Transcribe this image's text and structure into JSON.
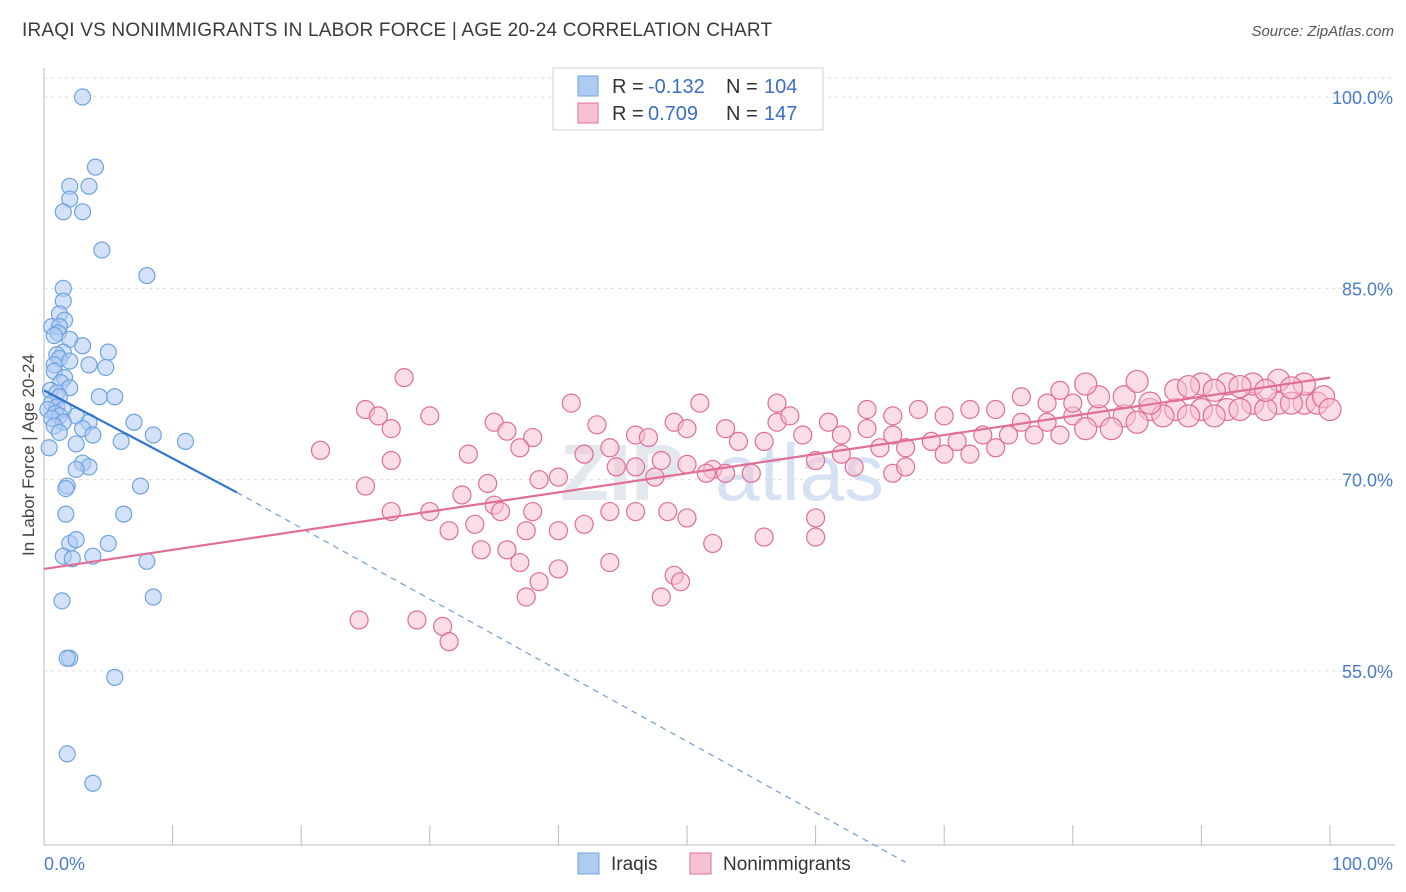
{
  "title": "IRAQI VS NONIMMIGRANTS IN LABOR FORCE | AGE 20-24 CORRELATION CHART",
  "source": "Source: ZipAtlas.com",
  "chart_data": {
    "type": "scatter",
    "ylabel": "In Labor Force | Age 20-24",
    "xlim": [
      0,
      100
    ],
    "ylim": [
      40,
      102
    ],
    "y_ticks": [
      {
        "value": 100,
        "label": "100.0%"
      },
      {
        "value": 85,
        "label": "85.0%"
      },
      {
        "value": 70,
        "label": "70.0%"
      },
      {
        "value": 55,
        "label": "55.0%"
      }
    ],
    "x_ticks": [
      {
        "value": 0,
        "label": "0.0%"
      },
      {
        "value": 100,
        "label": "100.0%"
      }
    ],
    "grid": true,
    "watermark": "ZIPatlas",
    "legend_top": [
      {
        "series": "Iraqis",
        "r_label": "R =",
        "r": "-0.132",
        "n_label": "N =",
        "n": "104"
      },
      {
        "series": "Nonimmigrants",
        "r_label": "R =",
        "r": "0.709",
        "n_label": "N =",
        "n": "147"
      }
    ],
    "series": [
      {
        "name": "Iraqis",
        "color": "#6fa3e0",
        "fill": "#aecbf2",
        "trend": {
          "x0": 0,
          "y0": 77,
          "x1": 15,
          "y1": 69,
          "dash_to_x": 67,
          "dash_to_y": 40
        },
        "points": [
          [
            3,
            100
          ],
          [
            4,
            94.5
          ],
          [
            2,
            93
          ],
          [
            3.5,
            93
          ],
          [
            2,
            92
          ],
          [
            1.5,
            91
          ],
          [
            3,
            91
          ],
          [
            4.5,
            88
          ],
          [
            8,
            86
          ],
          [
            1.5,
            85
          ],
          [
            1.5,
            84
          ],
          [
            1.2,
            83
          ],
          [
            1.6,
            82.5
          ],
          [
            0.6,
            82
          ],
          [
            1.2,
            82
          ],
          [
            1.1,
            81.5
          ],
          [
            0.8,
            81.3
          ],
          [
            2,
            81
          ],
          [
            3,
            80.5
          ],
          [
            5,
            80
          ],
          [
            1.5,
            80
          ],
          [
            1,
            79.8
          ],
          [
            1.2,
            79.5
          ],
          [
            2,
            79.3
          ],
          [
            3.5,
            79
          ],
          [
            0.8,
            79
          ],
          [
            4.8,
            78.8
          ],
          [
            0.8,
            78.5
          ],
          [
            1.6,
            78
          ],
          [
            1.3,
            77.6
          ],
          [
            2,
            77.2
          ],
          [
            0.5,
            77
          ],
          [
            1,
            76.8
          ],
          [
            1.2,
            76.5
          ],
          [
            4.3,
            76.5
          ],
          [
            5.5,
            76.5
          ],
          [
            0.6,
            76
          ],
          [
            1,
            75.7
          ],
          [
            1.5,
            75.5
          ],
          [
            0.3,
            75.5
          ],
          [
            0.9,
            75.2
          ],
          [
            1.2,
            75
          ],
          [
            2.5,
            75
          ],
          [
            0.6,
            74.8
          ],
          [
            1.5,
            74.5
          ],
          [
            3.5,
            74.5
          ],
          [
            7,
            74.5
          ],
          [
            0.8,
            74.2
          ],
          [
            3,
            74
          ],
          [
            1.2,
            73.7
          ],
          [
            3.8,
            73.5
          ],
          [
            8.5,
            73.5
          ],
          [
            11,
            73
          ],
          [
            2.5,
            72.8
          ],
          [
            6,
            73
          ],
          [
            0.4,
            72.5
          ],
          [
            3,
            71.3
          ],
          [
            3.5,
            71
          ],
          [
            2.5,
            70.8
          ],
          [
            1.8,
            69.5
          ],
          [
            1.7,
            69.3
          ],
          [
            7.5,
            69.5
          ],
          [
            1.7,
            67.3
          ],
          [
            6.2,
            67.3
          ],
          [
            2,
            65
          ],
          [
            5,
            65
          ],
          [
            2.5,
            65.3
          ],
          [
            1.5,
            64
          ],
          [
            2.2,
            63.8
          ],
          [
            3.8,
            64
          ],
          [
            8,
            63.6
          ],
          [
            1.4,
            60.5
          ],
          [
            8.5,
            60.8
          ],
          [
            2,
            56
          ],
          [
            1.8,
            56
          ],
          [
            5.5,
            54.5
          ],
          [
            1.8,
            48.5
          ],
          [
            3.8,
            46.2
          ]
        ]
      },
      {
        "name": "Nonimmigrants",
        "color": "#e06e96",
        "fill": "#f6c1d2",
        "trend": {
          "x0": 0,
          "y0": 63,
          "x1": 100,
          "y1": 78
        },
        "points": [
          [
            28,
            78
          ],
          [
            41,
            76
          ],
          [
            25,
            75.5
          ],
          [
            26,
            75
          ],
          [
            30,
            75
          ],
          [
            27,
            74
          ],
          [
            35,
            74.5
          ],
          [
            36,
            73.8
          ],
          [
            38,
            73.3
          ],
          [
            43,
            74.3
          ],
          [
            49,
            74.5
          ],
          [
            44,
            72.5
          ],
          [
            46,
            73.5
          ],
          [
            47,
            73.3
          ],
          [
            37,
            72.5
          ],
          [
            21.5,
            72.3
          ],
          [
            27,
            71.5
          ],
          [
            33,
            72
          ],
          [
            42,
            72
          ],
          [
            46,
            71
          ],
          [
            48,
            71.5
          ],
          [
            50,
            71.2
          ],
          [
            52,
            70.8
          ],
          [
            53,
            70.5
          ],
          [
            40,
            70.2
          ],
          [
            44.5,
            71
          ],
          [
            25,
            69.5
          ],
          [
            34.5,
            69.7
          ],
          [
            38.5,
            70
          ],
          [
            47.5,
            70.2
          ],
          [
            51.5,
            70.5
          ],
          [
            55,
            70.5
          ],
          [
            32.5,
            68.8
          ],
          [
            35,
            68
          ],
          [
            27,
            67.5
          ],
          [
            30,
            67.5
          ],
          [
            35.5,
            67.5
          ],
          [
            38,
            67.5
          ],
          [
            46,
            67.5
          ],
          [
            50,
            67
          ],
          [
            60,
            67
          ],
          [
            44,
            67.5
          ],
          [
            48.5,
            67.5
          ],
          [
            40,
            66
          ],
          [
            33.5,
            66.5
          ],
          [
            42,
            66.5
          ],
          [
            37.5,
            66
          ],
          [
            31.5,
            66
          ],
          [
            34,
            64.5
          ],
          [
            36,
            64.5
          ],
          [
            40,
            63
          ],
          [
            49,
            62.5
          ],
          [
            38.5,
            62
          ],
          [
            44,
            63.5
          ],
          [
            37,
            63.5
          ],
          [
            24.5,
            59
          ],
          [
            29,
            59
          ],
          [
            31,
            58.5
          ],
          [
            31.5,
            57.3
          ],
          [
            37.5,
            60.8
          ],
          [
            48,
            60.8
          ],
          [
            49.5,
            62
          ],
          [
            52,
            65
          ],
          [
            56,
            65.5
          ],
          [
            60,
            65.5
          ],
          [
            57,
            74.5
          ],
          [
            59,
            73.5
          ],
          [
            62,
            73.5
          ],
          [
            64,
            74
          ],
          [
            66,
            73.5
          ],
          [
            67,
            72.5
          ],
          [
            69,
            73
          ],
          [
            71,
            73
          ],
          [
            73,
            73.5
          ],
          [
            75,
            73.5
          ],
          [
            62,
            72
          ],
          [
            65,
            72.5
          ],
          [
            70,
            72
          ],
          [
            72,
            72
          ],
          [
            74,
            72.5
          ],
          [
            60,
            71.5
          ],
          [
            63,
            71
          ],
          [
            66,
            70.5
          ],
          [
            76,
            74.5
          ],
          [
            78,
            74.5
          ],
          [
            80,
            75
          ],
          [
            82,
            75
          ],
          [
            84,
            75
          ],
          [
            86,
            75.5
          ],
          [
            88,
            75.5
          ],
          [
            90,
            75.5
          ],
          [
            92,
            75.5
          ],
          [
            94,
            76
          ],
          [
            96,
            76
          ],
          [
            98,
            76
          ],
          [
            77,
            73.5
          ],
          [
            79,
            73.5
          ],
          [
            81,
            74
          ],
          [
            83,
            74
          ],
          [
            85,
            74.5
          ],
          [
            87,
            75
          ],
          [
            89,
            75
          ],
          [
            91,
            75
          ],
          [
            93,
            75.5
          ],
          [
            95,
            75.5
          ],
          [
            97,
            76
          ],
          [
            99,
            76
          ],
          [
            70,
            75
          ],
          [
            72,
            75.5
          ],
          [
            74,
            75.5
          ],
          [
            78,
            76
          ],
          [
            82,
            76.5
          ],
          [
            84,
            76.5
          ],
          [
            88,
            77
          ],
          [
            90,
            77.5
          ],
          [
            92,
            77.5
          ],
          [
            94,
            77.5
          ],
          [
            96,
            77.8
          ],
          [
            98,
            77.5
          ],
          [
            80,
            76
          ],
          [
            86,
            76
          ],
          [
            91,
            77
          ],
          [
            95,
            77
          ],
          [
            97,
            77.2
          ],
          [
            99.5,
            76.5
          ],
          [
            100,
            75.5
          ],
          [
            93,
            77.3
          ],
          [
            89,
            77.3
          ],
          [
            85,
            77.7
          ],
          [
            81,
            77.5
          ],
          [
            79,
            77
          ],
          [
            76,
            76.5
          ],
          [
            68,
            75.5
          ],
          [
            66,
            75
          ],
          [
            64,
            75.5
          ],
          [
            58,
            75
          ],
          [
            57,
            76
          ],
          [
            51,
            76
          ],
          [
            67,
            71
          ],
          [
            56,
            73
          ],
          [
            54,
            73
          ],
          [
            53,
            74
          ],
          [
            50,
            74
          ],
          [
            61,
            74.5
          ]
        ]
      }
    ]
  },
  "legend_bottom": [
    {
      "label": "Iraqis"
    },
    {
      "label": "Nonimmigrants"
    }
  ]
}
